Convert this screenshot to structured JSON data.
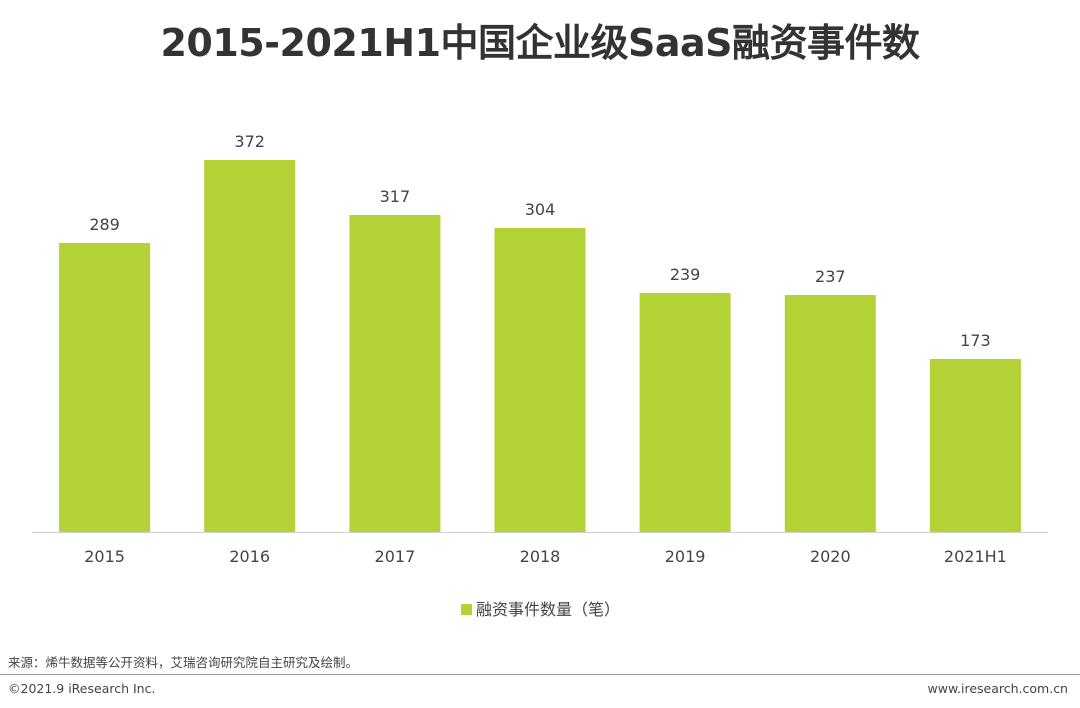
{
  "chart_data": {
    "type": "bar",
    "title": "2015-2021H1中国企业级SaaS融资事件数",
    "categories": [
      "2015",
      "2016",
      "2017",
      "2018",
      "2019",
      "2020",
      "2021H1"
    ],
    "series": [
      {
        "name": "融资事件数量（笔）",
        "values": [
          289,
          372,
          317,
          304,
          239,
          237,
          173
        ],
        "color": "#b2d235"
      }
    ],
    "xlabel": "",
    "ylabel": "",
    "ylim": [
      0,
      400
    ],
    "grid": false,
    "legend_position": "bottom-center"
  },
  "footer": {
    "source": "来源：烯牛数据等公开资料，艾瑞咨询研究院自主研究及绘制。",
    "copyright": "©2021.9 iResearch Inc.",
    "website": "www.iresearch.com.cn"
  }
}
